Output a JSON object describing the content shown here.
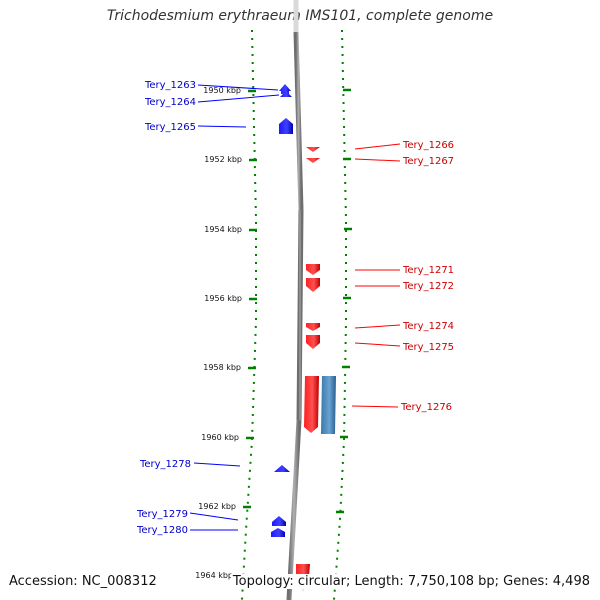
{
  "title": "Trichodesmium erythraeum IMS101, complete genome",
  "accession": "Accession: NC_008312",
  "topology": "Topology: circular; Length: 7,750,108 bp; Genes: 4,498",
  "colors": {
    "plus_strand": "#0000ff",
    "minus_strand": "#ff0000",
    "other_feature": "#4a86b8",
    "ticks": "#008000",
    "backbone": "#808080"
  },
  "axis": {
    "unit": "kbp",
    "labels": [
      "1950 kbp",
      "1952 kbp",
      "1954 kbp",
      "1956 kbp",
      "1958 kbp",
      "1960 kbp",
      "1962 kbp",
      "1964 kbp"
    ]
  },
  "genes": [
    {
      "name": "Tery_1263",
      "strand": "plus",
      "side": "left"
    },
    {
      "name": "Tery_1264",
      "strand": "plus",
      "side": "left"
    },
    {
      "name": "Tery_1265",
      "strand": "plus",
      "side": "left"
    },
    {
      "name": "Tery_1266",
      "strand": "minus",
      "side": "right"
    },
    {
      "name": "Tery_1267",
      "strand": "minus",
      "side": "right"
    },
    {
      "name": "Tery_1271",
      "strand": "minus",
      "side": "right"
    },
    {
      "name": "Tery_1272",
      "strand": "minus",
      "side": "right"
    },
    {
      "name": "Tery_1274",
      "strand": "minus",
      "side": "right"
    },
    {
      "name": "Tery_1275",
      "strand": "minus",
      "side": "right"
    },
    {
      "name": "Tery_1276",
      "strand": "minus",
      "side": "right"
    },
    {
      "name": "Tery_1278",
      "strand": "plus",
      "side": "left"
    },
    {
      "name": "Tery_1279",
      "strand": "plus",
      "side": "left"
    },
    {
      "name": "Tery_1280",
      "strand": "plus",
      "side": "left"
    }
  ]
}
